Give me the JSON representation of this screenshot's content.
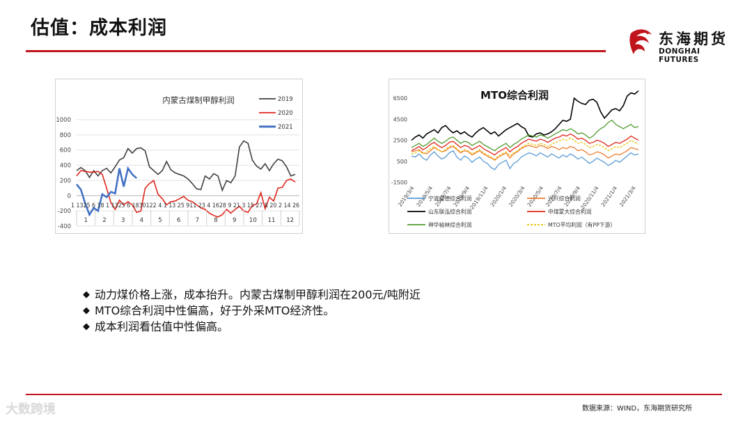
{
  "page": {
    "title": "估值：成本利润",
    "source": "数据来源：WIND，东海期货研究所",
    "watermark": "大数跨境",
    "bullets": [
      "动力煤价格上涨，成本抬升。内蒙古煤制甲醇利润在200元/吨附近",
      "MTO综合利润中性偏高，好于外采MTO经济性。",
      "成本利润看估值中性偏高。"
    ],
    "bullet_marker": "◆"
  },
  "logo": {
    "cn": "东海期货",
    "en": "DONGHAI FUTURES",
    "icon": "dragon-logo-icon",
    "color": "#c0141c"
  },
  "chart_data": [
    {
      "type": "line",
      "title": "内蒙古煤制甲醇利润",
      "ylim": [
        -400,
        1000
      ],
      "yticks": [
        -400,
        -200,
        0,
        200,
        400,
        600,
        800,
        1000
      ],
      "xlim": [
        0,
        52
      ],
      "x_tick_label_text": "1 1325 6 18 1 1325 6 1830122 4 1 13 25 911 23 4 1628 9 21 3 15 27 8 20 2 14 26",
      "months": [
        "1",
        "2",
        "3",
        "4",
        "5",
        "6",
        "7",
        "8",
        "9",
        "10",
        "11",
        "12"
      ],
      "legend_position": "top-right",
      "series": [
        {
          "name": "2019",
          "color": "#404040",
          "x": [
            0,
            1,
            2,
            3,
            4,
            5,
            6,
            7,
            8,
            9,
            10,
            11,
            12,
            13,
            14,
            15,
            16,
            17,
            18,
            19,
            20,
            21,
            22,
            23,
            24,
            25,
            26,
            27,
            28,
            29,
            30,
            31,
            32,
            33,
            34,
            35,
            36,
            37,
            38,
            39,
            40,
            41,
            42,
            43,
            44,
            45,
            46,
            47,
            48,
            49,
            50,
            51
          ],
          "y": [
            330,
            370,
            330,
            240,
            330,
            260,
            330,
            360,
            300,
            380,
            470,
            500,
            620,
            560,
            620,
            630,
            590,
            380,
            330,
            280,
            330,
            450,
            340,
            300,
            280,
            260,
            220,
            160,
            90,
            80,
            260,
            220,
            290,
            260,
            70,
            200,
            170,
            260,
            640,
            720,
            690,
            470,
            390,
            350,
            420,
            330,
            420,
            480,
            460,
            380,
            260,
            280
          ]
        },
        {
          "name": "2020",
          "color": "#e0241c",
          "x": [
            0,
            1,
            2,
            3,
            4,
            5,
            6,
            7,
            8,
            9,
            10,
            11,
            12,
            13,
            14,
            15,
            16,
            17,
            18,
            19,
            20,
            21,
            22,
            23,
            24,
            25,
            26,
            27,
            28,
            29,
            30,
            31,
            32,
            33,
            34,
            35,
            36,
            37,
            38,
            39,
            40,
            41,
            42,
            43,
            44,
            45,
            46,
            47,
            48,
            49,
            50,
            51
          ],
          "y": [
            260,
            330,
            320,
            310,
            310,
            320,
            280,
            100,
            -90,
            -180,
            -60,
            -120,
            -80,
            -120,
            -220,
            -200,
            100,
            160,
            200,
            20,
            -40,
            -120,
            -80,
            -70,
            -40,
            -10,
            -60,
            -80,
            -120,
            -160,
            -180,
            -230,
            -260,
            -280,
            -250,
            -180,
            -230,
            -180,
            -140,
            -200,
            -220,
            -130,
            -110,
            40,
            -170,
            -20,
            -70,
            100,
            110,
            200,
            220,
            180
          ]
        },
        {
          "name": "2021",
          "color": "#4472c4",
          "x": [
            0,
            1,
            2,
            3,
            4,
            5,
            6,
            7,
            8,
            9,
            10,
            11,
            12,
            13,
            14
          ],
          "y": [
            150,
            80,
            -100,
            -250,
            -160,
            -200,
            20,
            -20,
            50,
            30,
            360,
            120,
            360,
            280,
            230
          ]
        }
      ]
    },
    {
      "type": "line",
      "title": "MTO综合利润",
      "ylim": [
        -1500,
        7500
      ],
      "yticks": [
        -1500,
        500,
        2500,
        4500,
        6500
      ],
      "x_tick_labels": [
        "2019/3/4",
        "2019/5/4",
        "2019/7/4",
        "2019/9/4",
        "2019/11/4",
        "2020/1/4",
        "2020/3/4",
        "2020/5/4",
        "2020/7/4",
        "2020/9/4",
        "2020/11/4",
        "2021/1/4",
        "2021/3/4"
      ],
      "legend_position": "bottom",
      "series": [
        {
          "name": "宁波富德综合利润",
          "color": "#5b9bd5",
          "x": [
            0,
            1,
            2,
            3,
            4,
            5,
            6,
            7,
            8,
            9,
            10,
            11,
            12,
            13,
            14,
            15,
            16,
            17,
            18,
            19,
            20,
            21,
            22,
            23,
            24,
            25,
            26,
            27,
            28,
            29,
            30,
            31,
            32,
            33,
            34,
            35,
            36,
            37,
            38,
            39,
            40,
            41,
            42,
            43,
            44,
            45,
            46,
            47,
            48,
            49,
            50,
            51,
            52,
            53,
            54,
            55,
            56,
            57,
            58,
            59,
            60
          ],
          "y": [
            1000,
            900,
            1200,
            800,
            600,
            1100,
            1400,
            1000,
            700,
            900,
            1300,
            1500,
            900,
            600,
            1000,
            800,
            400,
            700,
            900,
            500,
            300,
            -100,
            -300,
            200,
            400,
            600,
            -200,
            300,
            500,
            900,
            1100,
            1300,
            1200,
            1000,
            1300,
            1100,
            900,
            1200,
            1000,
            800,
            1100,
            900,
            1200,
            1000,
            700,
            900,
            600,
            300,
            500,
            800,
            600,
            400,
            100,
            300,
            600,
            400,
            700,
            1000,
            1300,
            1100,
            1200
          ]
        },
        {
          "name": "兴兴综合利润",
          "color": "#ed7d31",
          "x": [
            0,
            1,
            2,
            3,
            4,
            5,
            6,
            7,
            8,
            9,
            10,
            11,
            12,
            13,
            14,
            15,
            16,
            17,
            18,
            19,
            20,
            21,
            22,
            23,
            24,
            25,
            26,
            27,
            28,
            29,
            30,
            31,
            32,
            33,
            34,
            35,
            36,
            37,
            38,
            39,
            40,
            41,
            42,
            43,
            44,
            45,
            46,
            47,
            48,
            49,
            50,
            51,
            52,
            53,
            54,
            55,
            56,
            57,
            58,
            59,
            60
          ],
          "y": [
            1400,
            1500,
            1600,
            1300,
            1200,
            1500,
            1800,
            1600,
            1400,
            1500,
            1800,
            1900,
            1600,
            1300,
            1500,
            1400,
            1100,
            1300,
            1500,
            1200,
            1000,
            800,
            600,
            900,
            1100,
            1300,
            800,
            1200,
            1400,
            1700,
            1900,
            2000,
            1900,
            1800,
            2000,
            1900,
            1700,
            1900,
            1800,
            1600,
            1800,
            1700,
            1900,
            1800,
            1500,
            1600,
            1400,
            1100,
            1200,
            1400,
            1300,
            1100,
            800,
            1000,
            1200,
            1100,
            1300,
            1500,
            1800,
            1700,
            1600
          ]
        },
        {
          "name": "山东联泓综合利润",
          "color": "#000000",
          "x": [
            0,
            1,
            2,
            3,
            4,
            5,
            6,
            7,
            8,
            9,
            10,
            11,
            12,
            13,
            14,
            15,
            16,
            17,
            18,
            19,
            20,
            21,
            22,
            23,
            24,
            25,
            26,
            27,
            28,
            29,
            30,
            31,
            32,
            33,
            34,
            35,
            36,
            37,
            38,
            39,
            40,
            41,
            42,
            43,
            44,
            45,
            46,
            47,
            48,
            49,
            50,
            51,
            52,
            53,
            54,
            55,
            56,
            57,
            58,
            59,
            60
          ],
          "y": [
            2500,
            2800,
            3000,
            2700,
            3100,
            3300,
            3500,
            3200,
            3700,
            3900,
            3500,
            3200,
            3400,
            3100,
            3300,
            3000,
            2800,
            3200,
            3500,
            3700,
            3400,
            3100,
            3300,
            2900,
            3200,
            3500,
            3700,
            3900,
            4100,
            3800,
            3600,
            2900,
            2800,
            3100,
            3200,
            3000,
            3100,
            3300,
            3600,
            4000,
            4400,
            4300,
            4500,
            6500,
            6200,
            6000,
            5900,
            6300,
            6400,
            6100,
            5200,
            4600,
            5000,
            5400,
            5500,
            5300,
            5800,
            6700,
            7000,
            6900,
            7200
          ]
        },
        {
          "name": "中煤蒙大综合利润",
          "color": "#e0241c",
          "x": [
            0,
            1,
            2,
            3,
            4,
            5,
            6,
            7,
            8,
            9,
            10,
            11,
            12,
            13,
            14,
            15,
            16,
            17,
            18,
            19,
            20,
            21,
            22,
            23,
            24,
            25,
            26,
            27,
            28,
            29,
            30,
            31,
            32,
            33,
            34,
            35,
            36,
            37,
            38,
            39,
            40,
            41,
            42,
            43,
            44,
            45,
            46,
            47,
            48,
            49,
            50,
            51,
            52,
            53,
            54,
            55,
            56,
            57,
            58,
            59,
            60
          ],
          "y": [
            1500,
            1700,
            1900,
            1600,
            1800,
            2100,
            2300,
            2000,
            1800,
            2000,
            2300,
            2400,
            2100,
            1800,
            2000,
            1900,
            1600,
            1800,
            2000,
            1700,
            1500,
            1300,
            1100,
            1400,
            1600,
            1800,
            1400,
            1700,
            1900,
            2200,
            2400,
            2600,
            2500,
            2400,
            2600,
            2500,
            2300,
            2500,
            2700,
            2800,
            3000,
            2900,
            3100,
            2900,
            2600,
            2700,
            2500,
            2200,
            2300,
            2500,
            2400,
            2200,
            1900,
            2100,
            2300,
            2200,
            2400,
            2600,
            2900,
            2700,
            2500
          ]
        },
        {
          "name": "神华榆林综合利润",
          "color": "#4e9a2e",
          "x": [
            0,
            1,
            2,
            3,
            4,
            5,
            6,
            7,
            8,
            9,
            10,
            11,
            12,
            13,
            14,
            15,
            16,
            17,
            18,
            19,
            20,
            21,
            22,
            23,
            24,
            25,
            26,
            27,
            28,
            29,
            30,
            31,
            32,
            33,
            34,
            35,
            36,
            37,
            38,
            39,
            40,
            41,
            42,
            43,
            44,
            45,
            46,
            47,
            48,
            49,
            50,
            51,
            52,
            53,
            54,
            55,
            56,
            57,
            58,
            59,
            60
          ],
          "y": [
            1800,
            2000,
            2200,
            1900,
            2100,
            2400,
            2700,
            2400,
            2200,
            2400,
            2700,
            2800,
            2500,
            2200,
            2400,
            2300,
            2000,
            2200,
            2400,
            2100,
            1900,
            1700,
            1500,
            1800,
            2000,
            2200,
            1800,
            2100,
            2300,
            2600,
            2800,
            3000,
            2900,
            2800,
            3000,
            2900,
            2700,
            2900,
            3100,
            3300,
            3500,
            3400,
            3600,
            3400,
            3100,
            3200,
            3000,
            2700,
            2900,
            3300,
            3600,
            3800,
            4200,
            4400,
            4000,
            3800,
            3600,
            3800,
            4000,
            3700,
            3800
          ]
        },
        {
          "name": "MTO平均利润（有PP下游）",
          "color": "#e6c000",
          "dash": true,
          "x": [
            0,
            1,
            2,
            3,
            4,
            5,
            6,
            7,
            8,
            9,
            10,
            11,
            12,
            13,
            14,
            15,
            16,
            17,
            18,
            19,
            20,
            21,
            22,
            23,
            24,
            25,
            26,
            27,
            28,
            29,
            30,
            31,
            32,
            33,
            34,
            35,
            36,
            37,
            38,
            39,
            40,
            41,
            42,
            43,
            44,
            45,
            46,
            47,
            48,
            49,
            50,
            51,
            52,
            53,
            54,
            55,
            56,
            57,
            58,
            59,
            60
          ],
          "y": [
            1200,
            1300,
            1500,
            1200,
            1400,
            1700,
            1900,
            1600,
            1400,
            1600,
            1900,
            2000,
            1700,
            1400,
            1600,
            1500,
            1200,
            1400,
            1600,
            1300,
            1100,
            900,
            700,
            1000,
            1200,
            1400,
            1000,
            1300,
            1500,
            1800,
            2000,
            2200,
            2100,
            2000,
            2200,
            2100,
            1900,
            2100,
            2300,
            2400,
            2600,
            2500,
            2700,
            2500,
            2200,
            2300,
            2100,
            1800,
            1900,
            2100,
            2000,
            1800,
            1500,
            1700,
            1900,
            1800,
            2000,
            2200,
            2500,
            2300,
            2100
          ]
        }
      ]
    }
  ]
}
